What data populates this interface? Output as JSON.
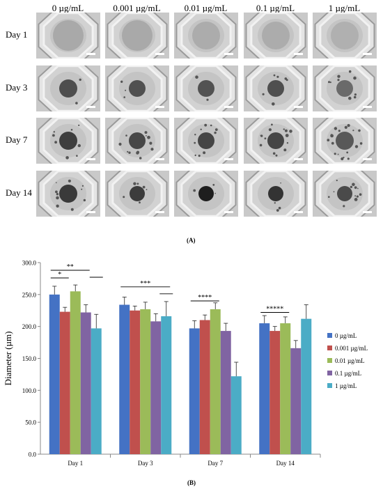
{
  "panel_a": {
    "concentrations": [
      "0 µg/mL",
      "0.001 µg/mL",
      "0.01 µg/mL",
      "0.1 µg/mL",
      "1 µg/mL"
    ],
    "days": [
      "Day 1",
      "Day 3",
      "Day 7",
      "Day 14"
    ],
    "label": "(A)"
  },
  "panel_b_label": "(B)",
  "chart_data": {
    "type": "bar",
    "categories": [
      "Day 1",
      "Day 3",
      "Day 7",
      "Day 14"
    ],
    "ylabel": "Diameter (µm)",
    "xlabel": "",
    "ylim": [
      0,
      300
    ],
    "yticks": [
      0,
      50,
      100,
      150,
      200,
      250,
      300
    ],
    "ytick_labels": [
      "0.0",
      "50.0",
      "100.0",
      "150.0",
      "200.0",
      "250.0",
      "300.0"
    ],
    "legend_position": "right",
    "grid": false,
    "series": [
      {
        "name": "0 µg/mL",
        "color": "#4472C4",
        "values": [
          250,
          234,
          197,
          205
        ],
        "errors": [
          13,
          12,
          12,
          12
        ]
      },
      {
        "name": "0.001 µg/mL",
        "color": "#C0504D",
        "values": [
          223,
          225,
          210,
          193
        ],
        "errors": [
          7,
          7,
          8,
          7
        ]
      },
      {
        "name": "0.01 µg/mL",
        "color": "#9BBB59",
        "values": [
          255,
          227,
          227,
          205
        ],
        "errors": [
          10,
          11,
          10,
          10
        ]
      },
      {
        "name": "0.1 µg/mL",
        "color": "#8064A2",
        "values": [
          222,
          208,
          193,
          166
        ],
        "errors": [
          12,
          12,
          12,
          12
        ]
      },
      {
        "name": "1 µg/mL",
        "color": "#4BACC6",
        "values": [
          197,
          216,
          122,
          212
        ],
        "errors": [
          22,
          23,
          22,
          22
        ]
      }
    ],
    "annotations": [
      {
        "text": "*",
        "category": 0,
        "from": 0,
        "to": 1,
        "y": 276
      },
      {
        "text": "**",
        "category": 0,
        "from": 0,
        "to": 3,
        "y": 288
      },
      {
        "text": "***",
        "category": 1,
        "from": 0,
        "to": 4,
        "y": 262
      },
      {
        "text": "****",
        "category": 2,
        "from": 0,
        "to": 2,
        "y": 240
      },
      {
        "text": "*****",
        "category": 3,
        "from": 0,
        "to": 2,
        "y": 222
      }
    ]
  }
}
